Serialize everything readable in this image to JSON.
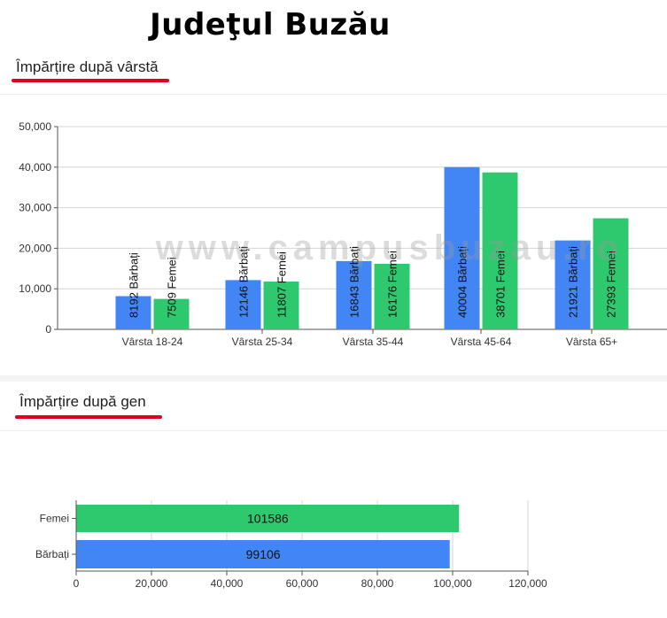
{
  "page": {
    "title": "Judeţul Buzău",
    "watermark": "www.campusbuzau.ro"
  },
  "age_section": {
    "heading": "Împărțire după vârstă"
  },
  "gender_section": {
    "heading": "Împărțire după gen"
  },
  "colors": {
    "men": "#4286f5",
    "women": "#2ec86f",
    "underline": "#e0001b"
  },
  "chart_data": [
    {
      "type": "bar",
      "orientation": "vertical",
      "title": "",
      "xlabel": "",
      "ylabel": "",
      "categories": [
        "Vârsta 18-24",
        "Vârsta 25-34",
        "Vârsta 35-44",
        "Vârsta 45-64",
        "Vârsta 65+"
      ],
      "series": [
        {
          "name": "Bărbați",
          "values": [
            8192,
            12146,
            16843,
            40004,
            21921
          ],
          "labels": [
            "8192 Bărbați",
            "12146 Bărbați",
            "16843 Bărbați",
            "40004 Bărbați",
            "21921 Bărbați"
          ]
        },
        {
          "name": "Femei",
          "values": [
            7509,
            11807,
            16176,
            38701,
            27393
          ],
          "labels": [
            "7509 Femei",
            "11807 Femei",
            "16176 Femei",
            "38701 Femei",
            "27393 Femei"
          ]
        }
      ],
      "ylim": [
        0,
        50000
      ],
      "yticks": [
        0,
        10000,
        20000,
        30000,
        40000,
        50000
      ],
      "ytick_labels": [
        "0",
        "10,000",
        "20,000",
        "30,000",
        "40,000",
        "50,000"
      ],
      "grid": true
    },
    {
      "type": "bar",
      "orientation": "horizontal",
      "title": "",
      "xlabel": "",
      "ylabel": "",
      "categories": [
        "Femei",
        "Bărbați"
      ],
      "values": [
        101586,
        99106
      ],
      "value_labels": [
        "101586",
        "99106"
      ],
      "xlim": [
        0,
        120000
      ],
      "xticks": [
        0,
        20000,
        40000,
        60000,
        80000,
        100000,
        120000
      ],
      "xtick_labels": [
        "0",
        "20,000",
        "40,000",
        "60,000",
        "80,000",
        "100,000",
        "120,000"
      ],
      "grid": true
    }
  ]
}
